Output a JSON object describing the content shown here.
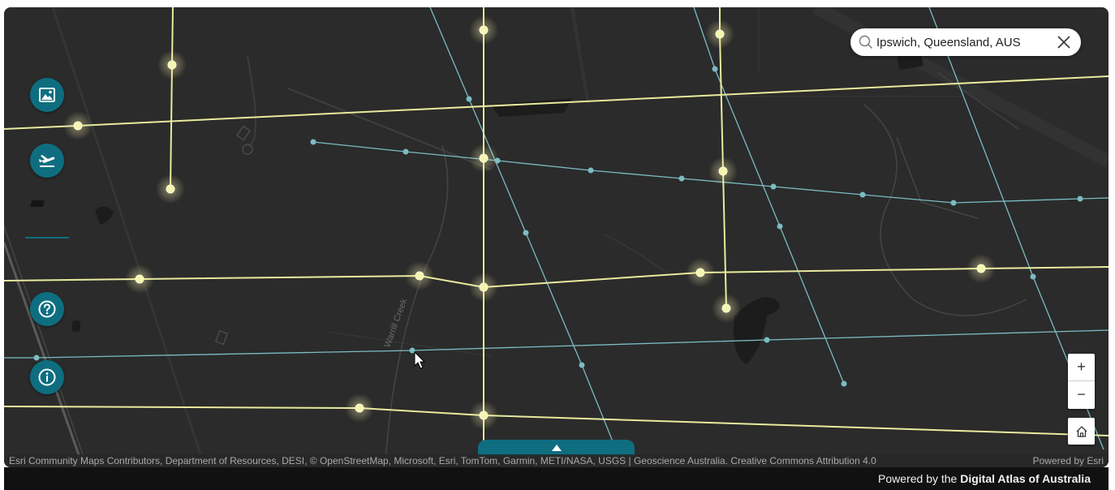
{
  "search": {
    "value": "Ipswich, Queensland, AUS",
    "icon": "search-icon",
    "clear_icon": "close-icon"
  },
  "sidebar": {
    "buttons": [
      {
        "name": "basemap-gallery-button",
        "icon": "image-icon"
      },
      {
        "name": "flight-path-button",
        "icon": "airplane-departure-icon"
      },
      {
        "name": "help-button",
        "icon": "question-mark-icon"
      },
      {
        "name": "info-button",
        "icon": "info-icon"
      }
    ]
  },
  "map": {
    "label_creek": "Warrill Creek",
    "colors": {
      "background": "#2b2b2b",
      "primary_lines": "#e9eb9d",
      "secondary_lines": "#7bbcc3",
      "accent": "#0e6e80"
    }
  },
  "controls": {
    "zoom_in": "+",
    "zoom_out": "−",
    "home_icon": "home-icon",
    "expand_icon": "triangle-up-icon"
  },
  "attribution": {
    "text": "Esri Community Maps Contributors, Department of Resources, DESI, © OpenStreetMap, Microsoft, Esri, TomTom, Garmin, METI/NASA, USGS | Geoscience Australia. Creative Commons Attribution 4.0",
    "powered_esri": "Powered by Esri"
  },
  "footer": {
    "prefix": "Powered by the ",
    "brand": "Digital Atlas of Australia"
  }
}
